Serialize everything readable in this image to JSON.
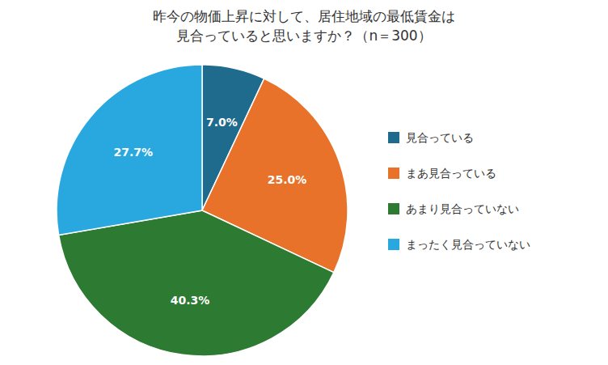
{
  "chart_data": {
    "type": "pie",
    "title": "昨今の物価上昇に対して、居住地域の最低賃金は",
    "subtitle": "見合っていると思いますか？（n＝300）",
    "categories": [
      "見合っている",
      "まあ見合っている",
      "あまり見合っていない",
      "まったく見合っていない"
    ],
    "values": [
      7.0,
      25.0,
      40.3,
      27.7
    ],
    "value_labels": [
      "7.0%",
      "25.0%",
      "40.3%",
      "27.7%"
    ],
    "colors": [
      "#1F6B8E",
      "#E8722A",
      "#2D7A32",
      "#29A8E0"
    ],
    "data_labels": true,
    "legend": "right"
  }
}
